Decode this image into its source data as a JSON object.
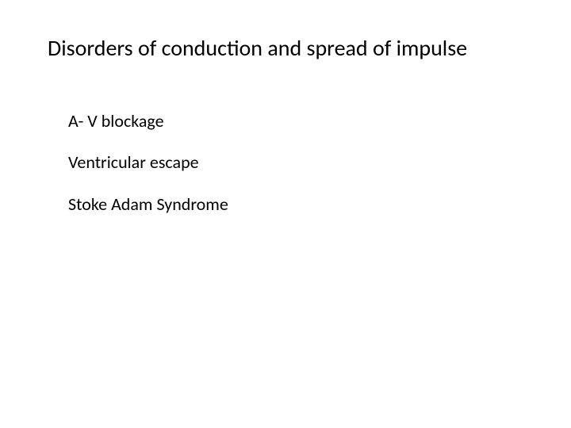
{
  "slide": {
    "title": "Disorders of conduction and spread of impulse",
    "items": [
      "A- V blockage",
      "Ventricular escape",
      "Stoke Adam Syndrome"
    ],
    "background_color": "#ffffff",
    "text_color": "#000000",
    "title_fontsize": 28,
    "body_fontsize": 22,
    "font_family": "Calibri"
  }
}
